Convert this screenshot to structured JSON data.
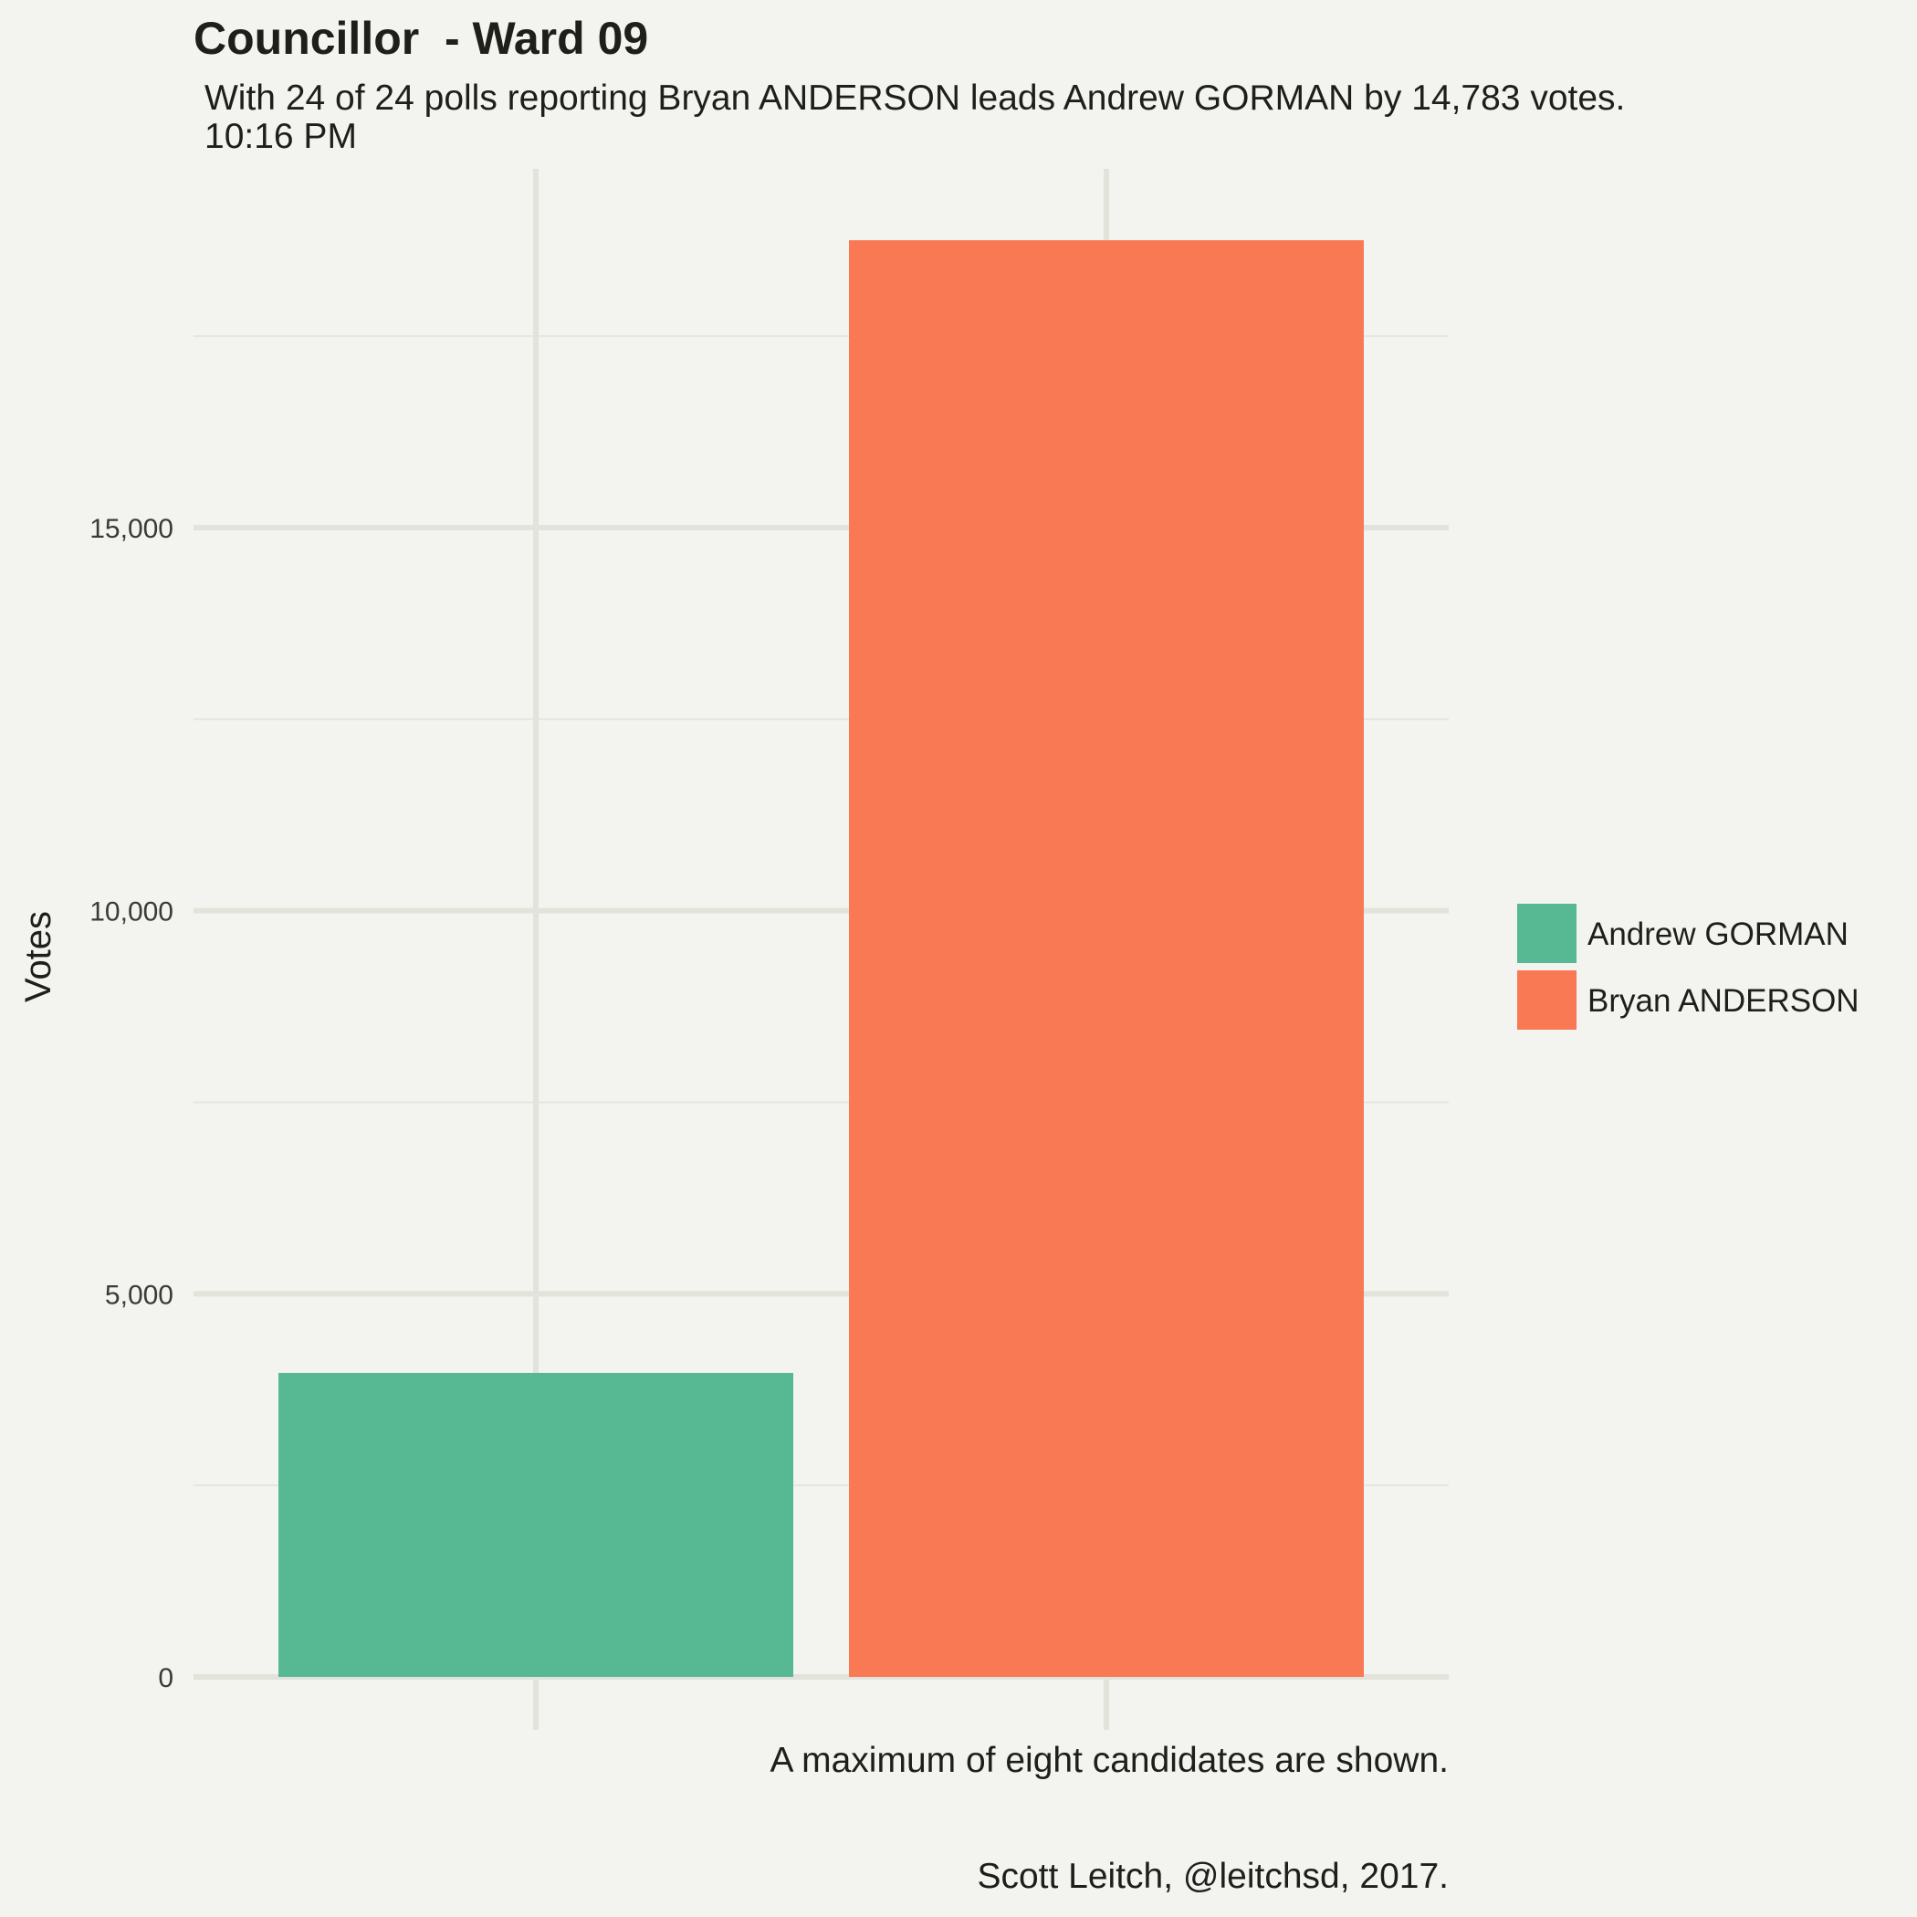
{
  "chart_data": {
    "type": "bar",
    "title": "Councillor  - Ward 09",
    "subtitle_lines": [
      "With 24 of 24 polls reporting Bryan ANDERSON leads Andrew GORMAN by 14,783 votes.",
      "10:16 PM"
    ],
    "ylabel": "Votes",
    "xlabel": "",
    "categories": [
      "Andrew GORMAN",
      "Bryan ANDERSON"
    ],
    "values": [
      3968,
      18751
    ],
    "colors": [
      "#57b994",
      "#f97955"
    ],
    "ylim": [
      0,
      19500
    ],
    "y_ticks": [
      {
        "value": 0,
        "label": "0"
      },
      {
        "value": 5000,
        "label": "5,000"
      },
      {
        "value": 10000,
        "label": "10,000"
      },
      {
        "value": 15000,
        "label": "15,000"
      }
    ],
    "y_minor_ticks": [
      2500,
      7500,
      12500,
      17500
    ],
    "grid": true,
    "legend": {
      "placement": "right",
      "entries": [
        "Andrew GORMAN",
        "Bryan ANDERSON"
      ]
    },
    "captions": [
      "A maximum of eight candidates are shown.",
      "Scott Leitch, @leitchsd, 2017."
    ]
  }
}
